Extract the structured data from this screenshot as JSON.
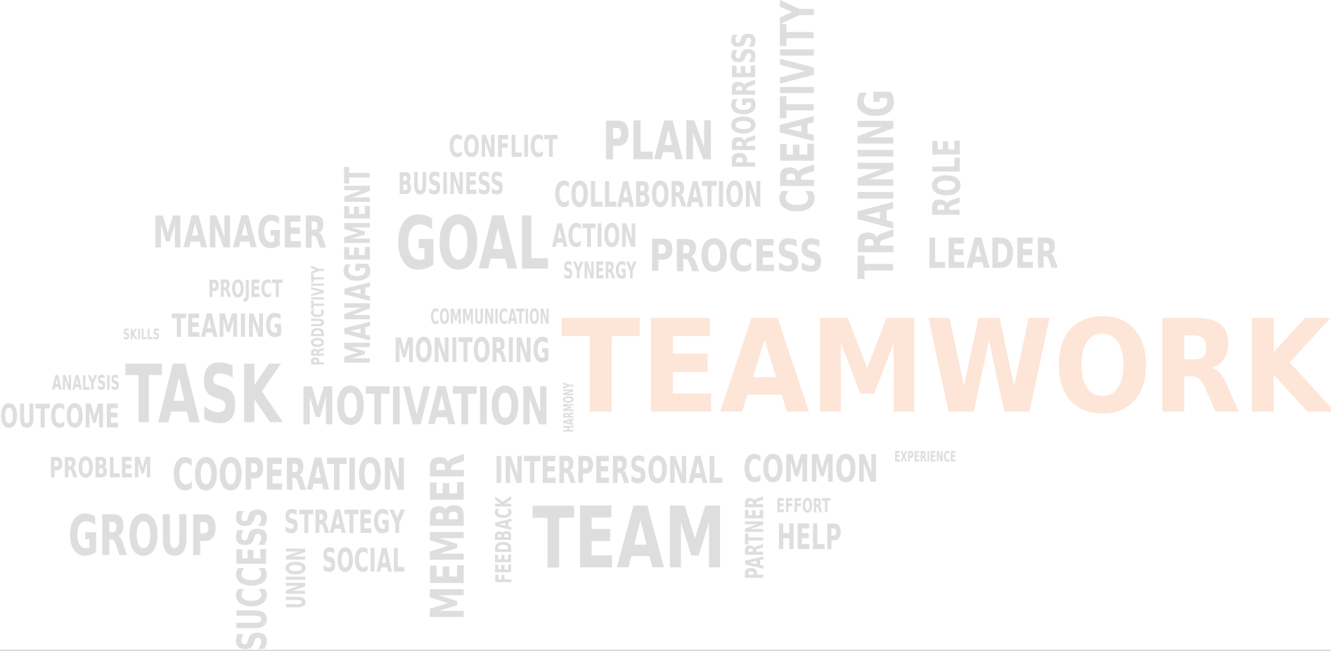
{
  "colors": {
    "word": "#dedede",
    "accent": "#fde5d8",
    "background": "#ffffff"
  },
  "words": [
    {
      "text": "TEAMWORK",
      "accent": true
    },
    {
      "text": "TEAM"
    },
    {
      "text": "GOAL"
    },
    {
      "text": "TASK"
    },
    {
      "text": "GROUP"
    },
    {
      "text": "MOTIVATION"
    },
    {
      "text": "COOPERATION"
    },
    {
      "text": "MANAGER"
    },
    {
      "text": "PLAN"
    },
    {
      "text": "PROCESS"
    },
    {
      "text": "LEADER"
    },
    {
      "text": "CREATIVITY"
    },
    {
      "text": "TRAINING"
    },
    {
      "text": "PROGRESS"
    },
    {
      "text": "ROLE"
    },
    {
      "text": "MANAGEMENT"
    },
    {
      "text": "MEMBER"
    },
    {
      "text": "SUCCESS"
    },
    {
      "text": "INTERPERSONAL"
    },
    {
      "text": "COMMON"
    },
    {
      "text": "COLLABORATION"
    },
    {
      "text": "CONFLICT"
    },
    {
      "text": "BUSINESS"
    },
    {
      "text": "ACTION"
    },
    {
      "text": "SYNERGY"
    },
    {
      "text": "COMMUNICATION"
    },
    {
      "text": "MONITORING"
    },
    {
      "text": "PROJECT"
    },
    {
      "text": "TEAMING"
    },
    {
      "text": "SKILLS"
    },
    {
      "text": "PRODUCTIVITY"
    },
    {
      "text": "ANALYSIS"
    },
    {
      "text": "OUTCOME"
    },
    {
      "text": "HARMONY"
    },
    {
      "text": "PROBLEM"
    },
    {
      "text": "STRATEGY"
    },
    {
      "text": "SOCIAL"
    },
    {
      "text": "UNION"
    },
    {
      "text": "FEEDBACK"
    },
    {
      "text": "PARTNER"
    },
    {
      "text": "EFFORT"
    },
    {
      "text": "HELP"
    },
    {
      "text": "EXPERIENCE"
    }
  ]
}
